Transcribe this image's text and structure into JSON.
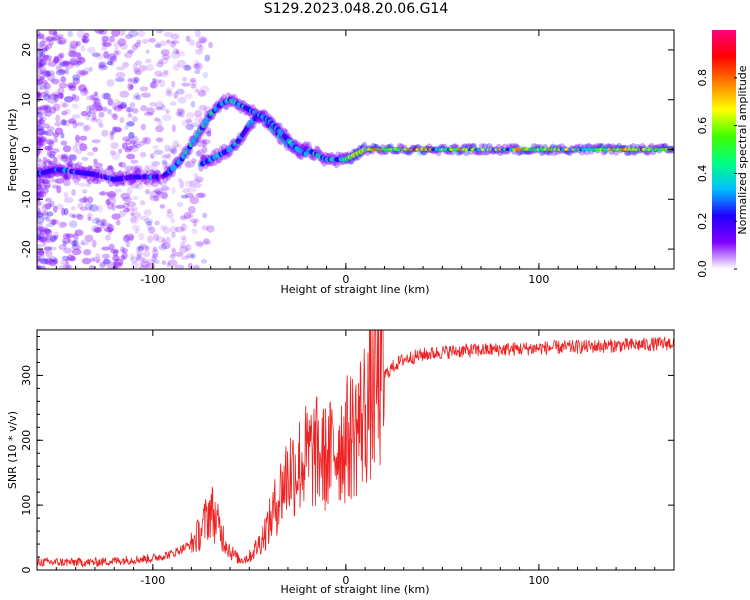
{
  "title": "S129.2023.048.20.06.G14",
  "colors": {
    "snr_line": "#ee2222",
    "axes": "#000000",
    "colormap": [
      "#ffffff",
      "#8000ff",
      "#2000ff",
      "#00c0ff",
      "#00ff80",
      "#40ff00",
      "#ffff00",
      "#ff8000",
      "#ff0000",
      "#ff0080"
    ]
  },
  "chart_data": [
    {
      "type": "heatmap",
      "title": "",
      "xlabel": "Height of straight line (km)",
      "ylabel": "Frequency (Hz)",
      "xlim": [
        -160,
        170
      ],
      "ylim": [
        -24,
        24
      ],
      "xticks": [
        -100,
        0,
        100
      ],
      "yticks": [
        -20,
        -10,
        0,
        10,
        20
      ],
      "grid": false,
      "ridges": [
        {
          "name": "",
          "x": [
            -160,
            -150,
            -140,
            -130,
            -120,
            -110,
            -100,
            -95,
            -90,
            -85,
            -80,
            -75,
            -70,
            -65,
            -60,
            -55,
            -50,
            -45,
            -40,
            -35,
            -30,
            -25,
            -20,
            -15,
            -10,
            -5,
            0,
            5,
            10,
            20,
            40,
            60,
            80,
            100,
            120,
            140,
            160,
            170
          ],
          "y": [
            -5,
            -4,
            -4.5,
            -5,
            -6,
            -5.5,
            -5.5,
            -5.5,
            -4,
            -2,
            1,
            4,
            7,
            9,
            10,
            9,
            8,
            7,
            5,
            3,
            1,
            0,
            0,
            -1,
            -2,
            -2,
            -2,
            -1,
            0,
            0,
            0,
            0,
            0,
            0,
            0,
            0,
            0,
            0
          ]
        },
        {
          "name": "",
          "x": [
            -75,
            -70,
            -65,
            -60,
            -55,
            -50,
            -45,
            -40,
            -35,
            -30,
            -25,
            -20
          ],
          "y": [
            -3,
            -2,
            -1,
            0,
            2,
            5,
            7,
            6,
            4,
            2,
            0,
            -1
          ]
        }
      ],
      "colorbar": {
        "label": "Normalized spectral amplitude",
        "range": [
          0.0,
          1.0
        ],
        "ticks": [
          "0.0",
          "0.2",
          "0.4",
          "0.6",
          "0.8"
        ]
      }
    },
    {
      "type": "line",
      "title": "",
      "xlabel": "Height of straight line (km)",
      "ylabel": "SNR (10 * v/v)",
      "xlim": [
        -160,
        170
      ],
      "ylim": [
        0,
        370
      ],
      "xticks": [
        -100,
        0,
        100
      ],
      "yticks": [
        0,
        100,
        200,
        300
      ],
      "grid": false,
      "series": [
        {
          "name": "",
          "x": [
            -160,
            -150,
            -140,
            -130,
            -120,
            -110,
            -100,
            -90,
            -80,
            -75,
            -70,
            -65,
            -60,
            -55,
            -50,
            -45,
            -40,
            -35,
            -30,
            -25,
            -20,
            -15,
            -10,
            -5,
            0,
            5,
            10,
            15,
            20,
            25,
            30,
            40,
            50,
            60,
            80,
            100,
            120,
            140,
            160,
            170
          ],
          "y": [
            12,
            12,
            12,
            12,
            14,
            16,
            18,
            25,
            40,
            60,
            95,
            60,
            30,
            15,
            20,
            40,
            70,
            110,
            150,
            160,
            175,
            180,
            170,
            190,
            200,
            215,
            245,
            280,
            300,
            315,
            325,
            332,
            336,
            338,
            340,
            342,
            344,
            346,
            348,
            350
          ]
        }
      ]
    }
  ]
}
